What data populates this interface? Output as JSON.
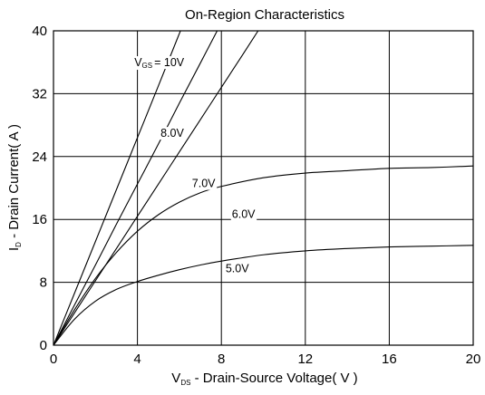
{
  "chart_data": {
    "type": "line",
    "title": "On-Region Characteristics",
    "xlabel": "V_DS - Drain-Source Voltage( V )",
    "ylabel": "I_D - Drain Current( A )",
    "xlabel_parts": {
      "main": "V",
      "sub": "DS",
      "rest": " - Drain-Source Voltage( V )"
    },
    "ylabel_parts": {
      "main": "I",
      "sub": "D",
      "rest": " - Drain Current( A )"
    },
    "xlim": [
      0,
      20
    ],
    "ylim": [
      0,
      40
    ],
    "xticks": [
      0,
      4,
      8,
      12,
      16,
      20
    ],
    "yticks": [
      0,
      8,
      16,
      24,
      32,
      40
    ],
    "grid": true,
    "series": [
      {
        "name": "V_GS = 10V",
        "label_parts": {
          "main": "V",
          "sub": "GS",
          "rest": "= 10V"
        },
        "x": [
          0,
          1,
          2,
          3,
          4,
          5,
          6.05
        ],
        "y": [
          0,
          6.6,
          13.2,
          19.8,
          26.4,
          33.0,
          40
        ]
      },
      {
        "name": "8.0V",
        "x": [
          0,
          1,
          2,
          3,
          4,
          5,
          6,
          7,
          7.8
        ],
        "y": [
          0,
          5.1,
          10.2,
          15.4,
          20.5,
          25.6,
          30.8,
          35.9,
          40
        ]
      },
      {
        "name": "7.0V",
        "x": [
          0,
          1,
          2,
          3,
          4,
          5,
          6,
          7,
          8,
          9,
          9.75
        ],
        "y": [
          0,
          4.1,
          8.2,
          12.3,
          16.4,
          20.5,
          24.6,
          28.7,
          32.8,
          36.9,
          40
        ]
      },
      {
        "name": "6.0V",
        "x": [
          0,
          1,
          2,
          3,
          4,
          5,
          6,
          7,
          8,
          10,
          12,
          14,
          16,
          18,
          20
        ],
        "y": [
          0,
          4.5,
          8.5,
          11.8,
          14.5,
          16.6,
          18.2,
          19.4,
          20.2,
          21.3,
          21.9,
          22.2,
          22.5,
          22.6,
          22.8
        ]
      },
      {
        "name": "5.0V",
        "x": [
          0,
          1,
          2,
          3,
          4,
          5,
          6,
          7,
          8,
          10,
          12,
          14,
          16,
          18,
          20
        ],
        "y": [
          0,
          3.3,
          5.6,
          7.1,
          8.1,
          8.9,
          9.6,
          10.2,
          10.7,
          11.5,
          12.0,
          12.3,
          12.5,
          12.6,
          12.7
        ]
      }
    ],
    "annotations": [
      {
        "series": "V_GS = 10V",
        "text": "= 10V",
        "x": 4.8,
        "y": 35.5
      },
      {
        "series": "8.0V",
        "text": "8.0V",
        "x": 5.1,
        "y": 26.5
      },
      {
        "series": "7.0V",
        "text": "7.0V",
        "x": 6.6,
        "y": 20.1
      },
      {
        "series": "6.0V",
        "text": "6.0V",
        "x": 8.5,
        "y": 16.2
      },
      {
        "series": "5.0V",
        "text": "5.0V",
        "x": 8.2,
        "y": 9.3
      }
    ]
  }
}
